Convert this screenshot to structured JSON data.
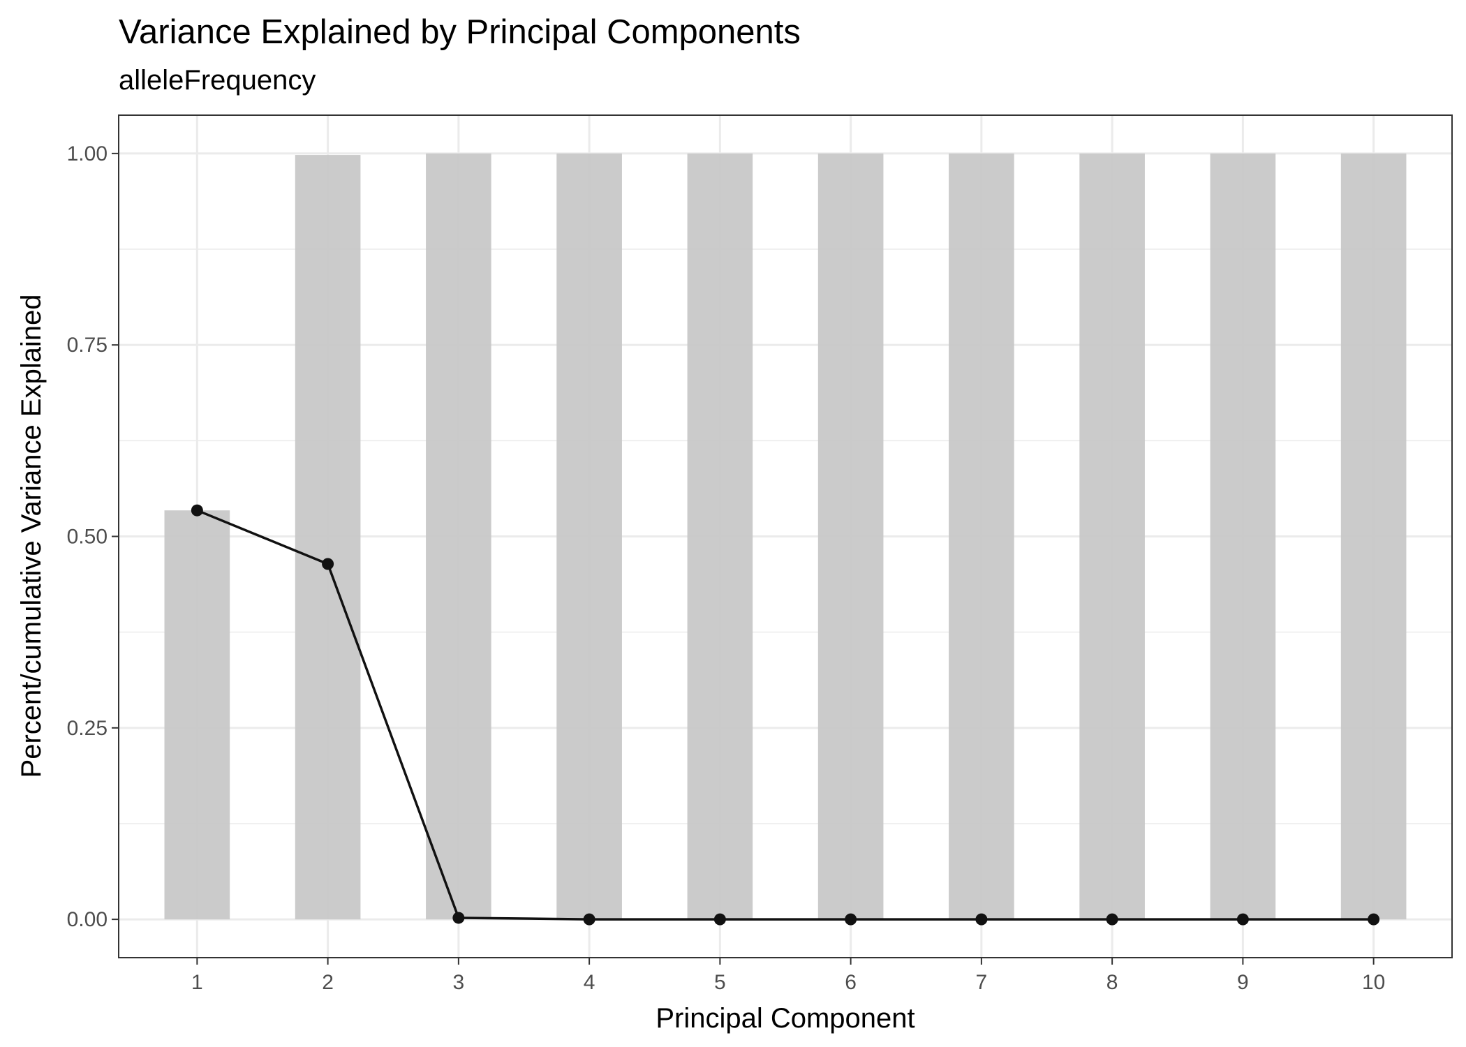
{
  "chart_data": {
    "type": "bar",
    "title": "Variance Explained by Principal Components",
    "subtitle": "alleleFrequency",
    "xlabel": "Principal Component",
    "ylabel": "Percent/cumulative Variance Explained",
    "categories": [
      "1",
      "2",
      "3",
      "4",
      "5",
      "6",
      "7",
      "8",
      "9",
      "10"
    ],
    "cumulative": [
      0.534,
      0.998,
      1.0,
      1.0,
      1.0,
      1.0,
      1.0,
      1.0,
      1.0,
      1.0
    ],
    "percent": [
      0.534,
      0.464,
      0.002,
      0.0,
      0.0,
      0.0,
      0.0,
      0.0,
      0.0,
      0.0
    ],
    "ylim": [
      -0.05,
      1.05
    ],
    "yticks": [
      0.0,
      0.25,
      0.5,
      0.75,
      1.0
    ],
    "ytick_labels": [
      "0.00",
      "0.25",
      "0.50",
      "0.75",
      "1.00"
    ],
    "grid": true,
    "legend": "none",
    "colors": {
      "bar": "#c8c8c8",
      "line": "#111111",
      "point": "#111111",
      "grid": "#ebebeb",
      "panel_border": "#333333"
    }
  }
}
